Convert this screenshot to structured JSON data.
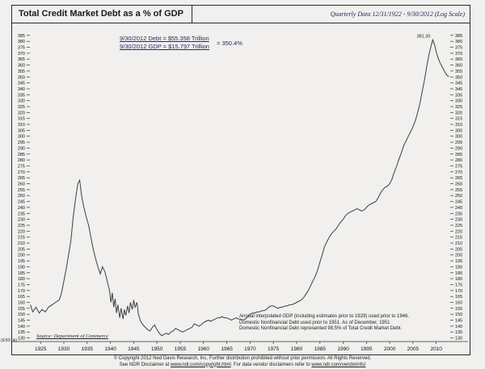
{
  "header": {
    "title": "Total Credit Market Debt as a % of GDP",
    "subtitle": "Quarterly Data 12/31/1922 - 9/30/2012  (Log Scale)"
  },
  "annotations": {
    "debt_line": "9/30/2012  Debt  =  $55.358 Trillion",
    "gdp_line": "9/30/2012  GDP  =  $15.797 Trillion",
    "ratio": "=  350.4%",
    "peak_label": "381.30",
    "source": "Source: Department of Commerce",
    "note_lines": [
      "Annual interpolated GDP (including estimates prior to 1929) used prior to 1946.",
      "Domestic Nonfinancial Debt used prior to 1951. As of December, 1951",
      "Domestic Nonfinancial Debt represented 98.5% of Total Credit Market Debt."
    ],
    "chart_code": "(E501A)"
  },
  "footer": {
    "line1": "© Copyright 2012 Ned Davis Research, Inc.  Further distribution prohibited without prior permission.  All Rights Reserved.",
    "line2_prefix": "See NDR Disclaimer at ",
    "link1": "www.ndr.com/copyright.html",
    "line2_mid": ".  For data vendor disclaimers refer to ",
    "link2": "www.ndr.com/vendorinfo/"
  },
  "chart_data": {
    "type": "line",
    "title": "Total Credit Market Debt as a % of GDP",
    "subtitle": "Quarterly Data 12/31/1922 - 9/30/2012 (Log Scale)",
    "xlabel": "",
    "ylabel": "Total Credit Market Debt as a % of GDP",
    "y_scale": "log",
    "grid": false,
    "legend": "none",
    "xlim": [
      1922.7,
      2013.0
    ],
    "ylim": [
      127,
      391
    ],
    "x_ticks": [
      1925,
      1930,
      1935,
      1940,
      1945,
      1950,
      1955,
      1960,
      1965,
      1970,
      1975,
      1980,
      1985,
      1990,
      1995,
      2000,
      2005,
      2010
    ],
    "y_ticks": [
      130,
      135,
      140,
      145,
      150,
      155,
      160,
      165,
      170,
      175,
      180,
      185,
      190,
      195,
      200,
      205,
      210,
      215,
      220,
      225,
      230,
      235,
      240,
      245,
      250,
      255,
      260,
      265,
      270,
      275,
      280,
      285,
      290,
      295,
      300,
      305,
      310,
      315,
      320,
      325,
      330,
      335,
      340,
      345,
      350,
      355,
      360,
      365,
      370,
      375,
      380,
      385
    ],
    "peak": {
      "x": 2009.25,
      "y": 381.3,
      "label": "381.30"
    },
    "end_value": 350.4,
    "series": [
      {
        "name": "Total Credit Market Debt as % of GDP",
        "points": [
          [
            1922.8,
            158
          ],
          [
            1923.3,
            152
          ],
          [
            1924,
            156
          ],
          [
            1924.7,
            151
          ],
          [
            1925.3,
            154
          ],
          [
            1926,
            152
          ],
          [
            1926.7,
            156
          ],
          [
            1927.5,
            158
          ],
          [
            1928.2,
            160
          ],
          [
            1929,
            162
          ],
          [
            1929.5,
            168
          ],
          [
            1930,
            178
          ],
          [
            1930.5,
            188
          ],
          [
            1931,
            200
          ],
          [
            1931.5,
            212
          ],
          [
            1932,
            232
          ],
          [
            1932.5,
            247
          ],
          [
            1933,
            260
          ],
          [
            1933.4,
            263
          ],
          [
            1933.8,
            250
          ],
          [
            1934.3,
            240
          ],
          [
            1934.8,
            232
          ],
          [
            1935.3,
            225
          ],
          [
            1935.8,
            215
          ],
          [
            1936.3,
            205
          ],
          [
            1936.8,
            197
          ],
          [
            1937.3,
            190
          ],
          [
            1937.8,
            184
          ],
          [
            1938.3,
            190
          ],
          [
            1938.8,
            186
          ],
          [
            1939.3,
            178
          ],
          [
            1939.8,
            170
          ],
          [
            1940.1,
            160
          ],
          [
            1940.4,
            168
          ],
          [
            1940.7,
            156
          ],
          [
            1941,
            163
          ],
          [
            1941.3,
            151
          ],
          [
            1941.6,
            158
          ],
          [
            1942,
            147
          ],
          [
            1942.3,
            155
          ],
          [
            1942.7,
            146
          ],
          [
            1943,
            154
          ],
          [
            1943.3,
            149
          ],
          [
            1943.7,
            157
          ],
          [
            1944,
            151
          ],
          [
            1944.3,
            160
          ],
          [
            1944.7,
            154
          ],
          [
            1945,
            162
          ],
          [
            1945.3,
            156
          ],
          [
            1945.7,
            160
          ],
          [
            1946,
            150
          ],
          [
            1946.5,
            144
          ],
          [
            1947,
            141
          ],
          [
            1947.5,
            139
          ],
          [
            1948,
            137
          ],
          [
            1948.5,
            136
          ],
          [
            1949,
            139
          ],
          [
            1949.5,
            141
          ],
          [
            1950,
            137
          ],
          [
            1950.5,
            134
          ],
          [
            1951,
            132
          ],
          [
            1951.5,
            133
          ],
          [
            1952,
            134
          ],
          [
            1952.5,
            133
          ],
          [
            1953,
            135
          ],
          [
            1953.5,
            136
          ],
          [
            1954,
            138
          ],
          [
            1954.5,
            137
          ],
          [
            1955,
            136
          ],
          [
            1955.5,
            135
          ],
          [
            1956,
            136
          ],
          [
            1956.5,
            137
          ],
          [
            1957,
            138
          ],
          [
            1957.5,
            139
          ],
          [
            1958,
            142
          ],
          [
            1958.5,
            141
          ],
          [
            1959,
            140
          ],
          [
            1959.5,
            141
          ],
          [
            1960,
            143
          ],
          [
            1960.5,
            144
          ],
          [
            1961,
            145
          ],
          [
            1961.5,
            144
          ],
          [
            1962,
            145
          ],
          [
            1962.5,
            146
          ],
          [
            1963,
            147
          ],
          [
            1963.5,
            147
          ],
          [
            1964,
            148
          ],
          [
            1964.5,
            147
          ],
          [
            1965,
            147
          ],
          [
            1965.5,
            146
          ],
          [
            1966,
            145
          ],
          [
            1966.5,
            146
          ],
          [
            1967,
            147
          ],
          [
            1967.5,
            146
          ],
          [
            1968,
            146
          ],
          [
            1968.5,
            145
          ],
          [
            1969,
            146
          ],
          [
            1969.5,
            148
          ],
          [
            1970,
            150
          ],
          [
            1970.5,
            151
          ],
          [
            1971,
            151
          ],
          [
            1971.5,
            152
          ],
          [
            1972,
            152
          ],
          [
            1972.5,
            153
          ],
          [
            1973,
            153
          ],
          [
            1973.5,
            154
          ],
          [
            1974,
            156
          ],
          [
            1974.5,
            157
          ],
          [
            1975,
            157
          ],
          [
            1975.5,
            156
          ],
          [
            1976,
            155
          ],
          [
            1976.5,
            156
          ],
          [
            1977,
            156
          ],
          [
            1977.5,
            157
          ],
          [
            1978,
            157
          ],
          [
            1978.5,
            158
          ],
          [
            1979,
            158
          ],
          [
            1979.5,
            159
          ],
          [
            1980,
            160
          ],
          [
            1980.5,
            161
          ],
          [
            1981,
            162
          ],
          [
            1981.5,
            164
          ],
          [
            1982,
            167
          ],
          [
            1982.5,
            170
          ],
          [
            1983,
            174
          ],
          [
            1983.5,
            178
          ],
          [
            1984,
            182
          ],
          [
            1984.5,
            187
          ],
          [
            1985,
            194
          ],
          [
            1985.5,
            200
          ],
          [
            1986,
            207
          ],
          [
            1986.5,
            211
          ],
          [
            1987,
            215
          ],
          [
            1987.5,
            218
          ],
          [
            1988,
            220
          ],
          [
            1988.5,
            222
          ],
          [
            1989,
            225
          ],
          [
            1989.5,
            228
          ],
          [
            1990,
            230
          ],
          [
            1990.5,
            233
          ],
          [
            1991,
            235
          ],
          [
            1991.5,
            236
          ],
          [
            1992,
            237
          ],
          [
            1992.5,
            238
          ],
          [
            1993,
            239
          ],
          [
            1993.5,
            238
          ],
          [
            1994,
            237
          ],
          [
            1994.5,
            238
          ],
          [
            1995,
            240
          ],
          [
            1995.5,
            242
          ],
          [
            1996,
            243
          ],
          [
            1996.5,
            244
          ],
          [
            1997,
            245
          ],
          [
            1997.5,
            248
          ],
          [
            1998,
            252
          ],
          [
            1998.5,
            255
          ],
          [
            1999,
            257
          ],
          [
            1999.5,
            258
          ],
          [
            2000,
            260
          ],
          [
            2000.5,
            264
          ],
          [
            2001,
            270
          ],
          [
            2001.5,
            275
          ],
          [
            2002,
            281
          ],
          [
            2002.5,
            286
          ],
          [
            2003,
            292
          ],
          [
            2003.5,
            296
          ],
          [
            2004,
            300
          ],
          [
            2004.5,
            304
          ],
          [
            2005,
            308
          ],
          [
            2005.5,
            313
          ],
          [
            2006,
            320
          ],
          [
            2006.5,
            328
          ],
          [
            2007,
            338
          ],
          [
            2007.5,
            348
          ],
          [
            2008,
            360
          ],
          [
            2008.5,
            370
          ],
          [
            2009,
            378
          ],
          [
            2009.25,
            381.3
          ],
          [
            2009.7,
            376
          ],
          [
            2010,
            371
          ],
          [
            2010.4,
            366
          ],
          [
            2010.8,
            362
          ],
          [
            2011.2,
            359
          ],
          [
            2011.6,
            356
          ],
          [
            2012,
            353
          ],
          [
            2012.4,
            351
          ],
          [
            2012.75,
            350.4
          ]
        ]
      }
    ]
  }
}
